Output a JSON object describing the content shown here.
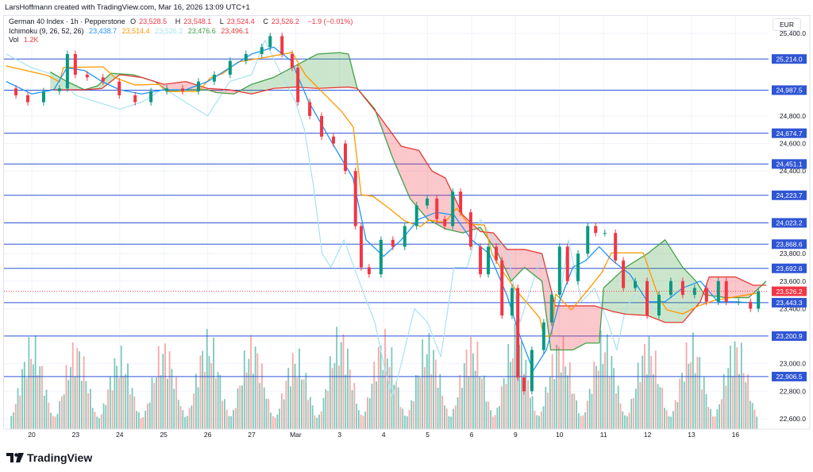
{
  "credit": "LarsHoffmann created with TradingView.com, Mar 16, 2026 13:09 UTC+1",
  "legend": {
    "symbol": "German 40 Index · 1h · Pepperstone",
    "o_label": "O",
    "o": "23,528.5",
    "h_label": "H",
    "h": "23,548.1",
    "l_label": "L",
    "l": "23,524.4",
    "c_label": "C",
    "c": "23,526.2",
    "change": "−1.9 (−0.01%)",
    "ichimoku_label": "Ichimoku (9, 26, 52, 26)",
    "ichimoku_values": [
      "23,438.7",
      "23,514.4",
      "23,526.2",
      "23,476.6",
      "23,496.1"
    ],
    "vol_label": "Vol",
    "vol": "1.2K"
  },
  "currency": "EUR",
  "logo_text": "TradingView",
  "colors": {
    "up": "#089981",
    "down": "#f23645",
    "tenkan": "#2196f3",
    "kijun": "#ff9800",
    "chikou": "#a8e3f0",
    "spanA": "#43a047",
    "spanB": "#e53935",
    "hline": "#2e55d4"
  },
  "chart_data": {
    "type": "candlestick",
    "title": "German 40 Index · 1h · Pepperstone",
    "x_tick_labels": [
      "20",
      "23",
      "24",
      "25",
      "26",
      "27",
      "Mar",
      "3",
      "4",
      "5",
      "6",
      "9",
      "10",
      "11",
      "12",
      "13",
      "16"
    ],
    "y_tick_labels": [
      "25,400.0",
      "24,800.0",
      "24,600.0",
      "24,400.0",
      "23,800.0",
      "23,600.0",
      "23,400.0",
      "23,000.0",
      "22,800.0",
      "22,600.0"
    ],
    "y_ticks": [
      25400,
      24800,
      24600,
      24400,
      23800,
      23600,
      23400,
      23000,
      22800,
      22600
    ],
    "ylim": [
      22540,
      25500
    ],
    "current_price": 23526.2,
    "current_price_label": "23,526.2",
    "horizontal_levels": [
      {
        "value": 25214.0,
        "label": "25,214.0"
      },
      {
        "value": 24987.5,
        "label": "24,987.5"
      },
      {
        "value": 24674.7,
        "label": "24,674.7"
      },
      {
        "value": 24451.1,
        "label": "24,451.1"
      },
      {
        "value": 24223.7,
        "label": "24,223.7"
      },
      {
        "value": 24023.2,
        "label": "24,023.2"
      },
      {
        "value": 23868.6,
        "label": "23,868.6"
      },
      {
        "value": 23692.6,
        "label": "23,692.6"
      },
      {
        "value": 23443.3,
        "label": "23,443.3"
      },
      {
        "value": 23200.9,
        "label": "23,200.9"
      },
      {
        "value": 22906.5,
        "label": "22,906.5"
      }
    ],
    "close_points": [
      [
        -0.58,
        25000
      ],
      [
        -0.36,
        24950
      ],
      [
        -0.09,
        24900
      ],
      [
        0.27,
        24980
      ],
      [
        0.63,
        25000
      ],
      [
        0.81,
        25250
      ],
      [
        0.99,
        25100
      ],
      [
        1.26,
        25080
      ],
      [
        1.62,
        25050
      ],
      [
        1.99,
        24950
      ],
      [
        2.35,
        24900
      ],
      [
        2.71,
        24980
      ],
      [
        3.07,
        25000
      ],
      [
        3.43,
        24980
      ],
      [
        3.79,
        25050
      ],
      [
        4.15,
        25100
      ],
      [
        4.51,
        25200
      ],
      [
        4.87,
        25250
      ],
      [
        5.23,
        25300
      ],
      [
        5.42,
        25380
      ],
      [
        5.69,
        25250
      ],
      [
        5.92,
        25150
      ],
      [
        6.05,
        24900
      ],
      [
        6.32,
        24800
      ],
      [
        6.59,
        24650
      ],
      [
        6.86,
        24600
      ],
      [
        7.13,
        24400
      ],
      [
        7.36,
        24000
      ],
      [
        7.49,
        23700
      ],
      [
        7.67,
        23650
      ],
      [
        7.94,
        23900
      ],
      [
        8.21,
        23850
      ],
      [
        8.48,
        24000
      ],
      [
        8.75,
        24150
      ],
      [
        8.99,
        24200
      ],
      [
        9.21,
        24050
      ],
      [
        9.39,
        24000
      ],
      [
        9.57,
        24250
      ],
      [
        9.75,
        24100
      ],
      [
        9.98,
        23850
      ],
      [
        10.2,
        23650
      ],
      [
        10.38,
        23850
      ],
      [
        10.56,
        23750
      ],
      [
        10.69,
        23350
      ],
      [
        10.92,
        23550
      ],
      [
        11.05,
        22900
      ],
      [
        11.19,
        22800
      ],
      [
        11.37,
        23100
      ],
      [
        11.64,
        23300
      ],
      [
        11.82,
        23500
      ],
      [
        12.0,
        23850
      ],
      [
        12.18,
        23600
      ],
      [
        12.42,
        23800
      ],
      [
        12.64,
        24000
      ],
      [
        12.82,
        23950
      ],
      [
        13.03,
        23950
      ],
      [
        13.27,
        23750
      ],
      [
        13.45,
        23550
      ],
      [
        13.72,
        23600
      ],
      [
        13.99,
        23350
      ],
      [
        14.26,
        23500
      ],
      [
        14.53,
        23600
      ],
      [
        14.8,
        23500
      ],
      [
        15.07,
        23550
      ],
      [
        15.34,
        23450
      ],
      [
        15.61,
        23600
      ],
      [
        15.79,
        23450
      ],
      [
        16.07,
        23450
      ],
      [
        16.34,
        23400
      ],
      [
        16.52,
        23526.2
      ]
    ],
    "ichimoku": {
      "tenkan": [
        [
          -0.58,
          25050
        ],
        [
          0,
          24960
        ],
        [
          0.5,
          24990
        ],
        [
          0.8,
          25150
        ],
        [
          1.2,
          25130
        ],
        [
          1.6,
          25050
        ],
        [
          2,
          24990
        ],
        [
          2.5,
          24960
        ],
        [
          3,
          24990
        ],
        [
          3.5,
          24990
        ],
        [
          4,
          25050
        ],
        [
          4.5,
          25150
        ],
        [
          5,
          25250
        ],
        [
          5.5,
          25300
        ],
        [
          5.9,
          25200
        ],
        [
          6.3,
          24900
        ],
        [
          6.8,
          24620
        ],
        [
          7.3,
          24350
        ],
        [
          7.6,
          23900
        ],
        [
          8,
          23780
        ],
        [
          8.4,
          23900
        ],
        [
          8.8,
          24050
        ],
        [
          9.2,
          24100
        ],
        [
          9.6,
          24080
        ],
        [
          10,
          23900
        ],
        [
          10.4,
          23800
        ],
        [
          10.8,
          23500
        ],
        [
          11.1,
          23200
        ],
        [
          11.4,
          22950
        ],
        [
          11.7,
          23100
        ],
        [
          12,
          23450
        ],
        [
          12.3,
          23700
        ],
        [
          12.6,
          23750
        ],
        [
          12.9,
          23850
        ],
        [
          13.2,
          23750
        ],
        [
          13.6,
          23650
        ],
        [
          14,
          23450
        ],
        [
          14.4,
          23450
        ],
        [
          14.8,
          23550
        ],
        [
          15.2,
          23600
        ],
        [
          15.6,
          23450
        ],
        [
          16,
          23450
        ],
        [
          16.5,
          23440
        ]
      ],
      "kijun": [
        [
          -0.58,
          25163
        ],
        [
          0.36,
          25094
        ],
        [
          0.63,
          25048
        ],
        [
          0.72,
          25152
        ],
        [
          1.62,
          25157
        ],
        [
          1.9,
          25077
        ],
        [
          2.35,
          25025
        ],
        [
          2.89,
          25030
        ],
        [
          3.07,
          24978
        ],
        [
          3.79,
          24978
        ],
        [
          4.06,
          25077
        ],
        [
          4.33,
          25106
        ],
        [
          4.69,
          25192
        ],
        [
          5.23,
          25221
        ],
        [
          5.92,
          25261
        ],
        [
          6.23,
          25094
        ],
        [
          6.68,
          24950
        ],
        [
          7.04,
          24834
        ],
        [
          7.31,
          24719
        ],
        [
          7.49,
          24228
        ],
        [
          7.76,
          24216
        ],
        [
          8.12,
          24130
        ],
        [
          8.48,
          24037
        ],
        [
          8.84,
          23997
        ],
        [
          9.03,
          24043
        ],
        [
          9.39,
          24026
        ],
        [
          9.66,
          24130
        ],
        [
          9.93,
          24014
        ],
        [
          10.29,
          24008
        ],
        [
          10.47,
          23795
        ],
        [
          10.69,
          23679
        ],
        [
          11.01,
          23535
        ],
        [
          11.55,
          23333
        ],
        [
          11.64,
          23200
        ],
        [
          11.82,
          23200
        ],
        [
          11.91,
          23506
        ],
        [
          12.27,
          23391
        ],
        [
          12.64,
          23535
        ],
        [
          12.96,
          23662
        ],
        [
          13.18,
          23806
        ],
        [
          13.9,
          23806
        ],
        [
          14.26,
          23477
        ],
        [
          14.44,
          23391
        ],
        [
          14.8,
          23362
        ],
        [
          15.16,
          23420
        ],
        [
          15.52,
          23460
        ],
        [
          16.52,
          23514
        ]
      ],
      "chikou": [
        [
          -0.58,
          25250
        ],
        [
          0,
          25150
        ],
        [
          0.5,
          25100
        ],
        [
          1,
          24950
        ],
        [
          1.5,
          24900
        ],
        [
          2,
          24850
        ],
        [
          2.5,
          24900
        ],
        [
          3,
          25000
        ],
        [
          3.5,
          24900
        ],
        [
          4,
          24800
        ],
        [
          4.5,
          25050
        ],
        [
          5,
          25100
        ],
        [
          5.3,
          25350
        ],
        [
          5.6,
          25150
        ],
        [
          6,
          24900
        ],
        [
          6.2,
          24700
        ],
        [
          6.4,
          24300
        ],
        [
          6.6,
          23800
        ],
        [
          6.8,
          23700
        ],
        [
          7.1,
          23900
        ],
        [
          7.5,
          23550
        ],
        [
          7.8,
          23300
        ],
        [
          8,
          23000
        ],
        [
          8.2,
          22750
        ],
        [
          8.4,
          23000
        ],
        [
          8.7,
          23400
        ],
        [
          9,
          23300
        ],
        [
          9.3,
          23050
        ],
        [
          9.6,
          23700
        ],
        [
          9.9,
          23700
        ],
        [
          10.2,
          24050
        ],
        [
          10.5,
          23900
        ],
        [
          10.8,
          23850
        ],
        [
          11.1,
          23300
        ],
        [
          11.3,
          23500
        ],
        [
          11.6,
          23800
        ],
        [
          11.8,
          23500
        ],
        [
          12,
          23450
        ],
        [
          12.2,
          23900
        ],
        [
          12.5,
          23450
        ],
        [
          12.8,
          23550
        ],
        [
          13.1,
          23300
        ],
        [
          13.3,
          23100
        ],
        [
          13.5,
          23400
        ],
        [
          13.7,
          23500
        ],
        [
          14,
          23450
        ],
        [
          14.3,
          23350
        ]
      ],
      "spanA": [
        [
          0.42,
          25120
        ],
        [
          0.8,
          25050
        ],
        [
          1.2,
          24990
        ],
        [
          1.5,
          25020
        ],
        [
          1.8,
          25110
        ],
        [
          2.3,
          25100
        ],
        [
          2.8,
          25050
        ],
        [
          3.1,
          24980
        ],
        [
          3.5,
          24990
        ],
        [
          4,
          24990
        ],
        [
          4.2,
          24970
        ],
        [
          4.6,
          24960
        ],
        [
          5,
          25030
        ],
        [
          5.5,
          25080
        ],
        [
          6.2,
          25200
        ],
        [
          6.5,
          25250
        ],
        [
          7,
          25260
        ],
        [
          7.2,
          25250
        ],
        [
          7.4,
          25000
        ],
        [
          7.8,
          24850
        ],
        [
          8.2,
          24500
        ],
        [
          8.6,
          24200
        ],
        [
          9,
          24050
        ],
        [
          9.4,
          23980
        ],
        [
          9.8,
          23950
        ],
        [
          10.2,
          23990
        ],
        [
          10.6,
          23800
        ],
        [
          10.9,
          23600
        ],
        [
          11.2,
          23700
        ],
        [
          11.6,
          23600
        ],
        [
          11.8,
          23100
        ],
        [
          12.3,
          23100
        ],
        [
          12.6,
          23150
        ],
        [
          12.9,
          23150
        ],
        [
          13,
          23550
        ],
        [
          13.5,
          23700
        ],
        [
          14,
          23800
        ],
        [
          14.4,
          23900
        ],
        [
          14.8,
          23700
        ],
        [
          15.1,
          23600
        ],
        [
          15.3,
          23500
        ],
        [
          15.8,
          23480
        ],
        [
          16.3,
          23480
        ],
        [
          16.7,
          23600
        ]
      ],
      "spanB": [
        [
          0.42,
          24990
        ],
        [
          1.2,
          24990
        ],
        [
          1.6,
          25000
        ],
        [
          2,
          25100
        ],
        [
          2.5,
          25080
        ],
        [
          3,
          25030
        ],
        [
          3.5,
          25050
        ],
        [
          4,
          25000
        ],
        [
          4.5,
          24990
        ],
        [
          5,
          24960
        ],
        [
          5.5,
          25000
        ],
        [
          6,
          25010
        ],
        [
          6.5,
          25000
        ],
        [
          7.2,
          25010
        ],
        [
          7.4,
          25000
        ],
        [
          7.9,
          24800
        ],
        [
          8.4,
          24580
        ],
        [
          8.8,
          24550
        ],
        [
          9.1,
          24400
        ],
        [
          9.4,
          24350
        ],
        [
          9.8,
          24080
        ],
        [
          10.2,
          23960
        ],
        [
          10.5,
          23950
        ],
        [
          10.8,
          23830
        ],
        [
          11.2,
          23830
        ],
        [
          11.6,
          23800
        ],
        [
          11.9,
          23420
        ],
        [
          12.3,
          23420
        ],
        [
          12.8,
          23420
        ],
        [
          13.2,
          23380
        ],
        [
          13.5,
          23360
        ],
        [
          14,
          23350
        ],
        [
          14.4,
          23300
        ],
        [
          14.8,
          23300
        ],
        [
          15.2,
          23450
        ],
        [
          15.4,
          23630
        ],
        [
          16,
          23630
        ],
        [
          16.4,
          23570
        ],
        [
          16.7,
          23570
        ]
      ]
    },
    "volume_daily_peak_k": [
      4.2,
      4.0,
      3.6,
      4.0,
      4.4,
      4.2,
      3.6,
      4.6,
      4.4,
      4.3,
      4.2,
      4.6,
      4.2,
      4.4,
      4.2,
      4.2,
      4.2
    ],
    "volume_last_k": 1.2
  }
}
